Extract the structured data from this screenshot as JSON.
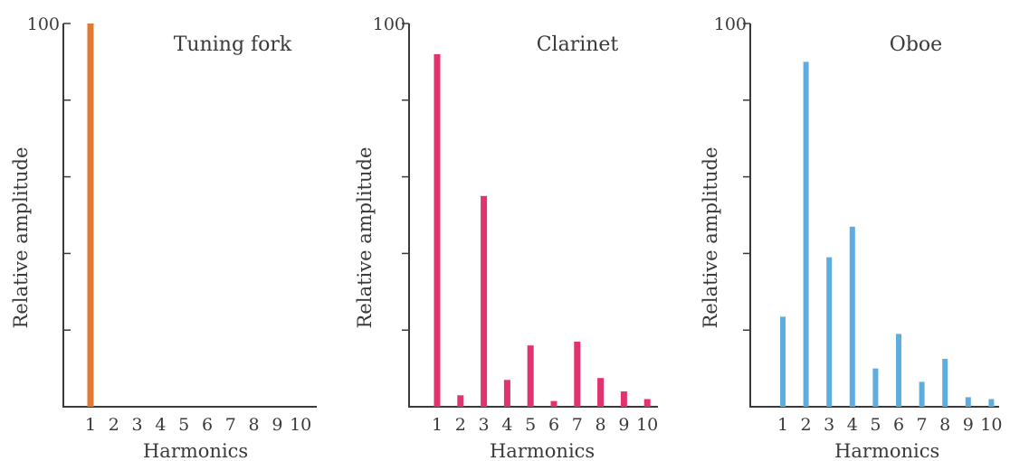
{
  "chart_data": [
    {
      "type": "bar",
      "title": "Tuning fork",
      "xlabel": "Harmonics",
      "ylabel": "Relative amplitude",
      "ylim": [
        0,
        100
      ],
      "yticks": [
        0,
        20,
        40,
        60,
        80,
        100
      ],
      "ytick_labels": [
        "100"
      ],
      "categories": [
        "1",
        "2",
        "3",
        "4",
        "5",
        "6",
        "7",
        "8",
        "9",
        "10"
      ],
      "values": [
        100,
        0,
        0,
        0,
        0,
        0,
        0,
        0,
        0,
        0
      ],
      "color": "#E07A32"
    },
    {
      "type": "bar",
      "title": "Clarinet",
      "xlabel": "Harmonics",
      "ylabel": "Relative amplitude",
      "ylim": [
        0,
        100
      ],
      "yticks": [
        0,
        20,
        40,
        60,
        80,
        100
      ],
      "ytick_labels": [
        "100"
      ],
      "categories": [
        "1",
        "2",
        "3",
        "4",
        "5",
        "6",
        "7",
        "8",
        "9",
        "10"
      ],
      "values": [
        92,
        3,
        55,
        7,
        16,
        1.5,
        17,
        7.5,
        4,
        2
      ],
      "color": "#E0336F"
    },
    {
      "type": "bar",
      "title": "Oboe",
      "xlabel": "Harmonics",
      "ylabel": "Relative amplitude",
      "ylim": [
        0,
        100
      ],
      "yticks": [
        0,
        20,
        40,
        60,
        80,
        100
      ],
      "ytick_labels": [
        "100"
      ],
      "categories": [
        "1",
        "2",
        "3",
        "4",
        "5",
        "6",
        "7",
        "8",
        "9",
        "10"
      ],
      "values": [
        23.5,
        90,
        39,
        47,
        10,
        19,
        6.5,
        12.5,
        2.5,
        2
      ],
      "color": "#5FACDF"
    }
  ]
}
